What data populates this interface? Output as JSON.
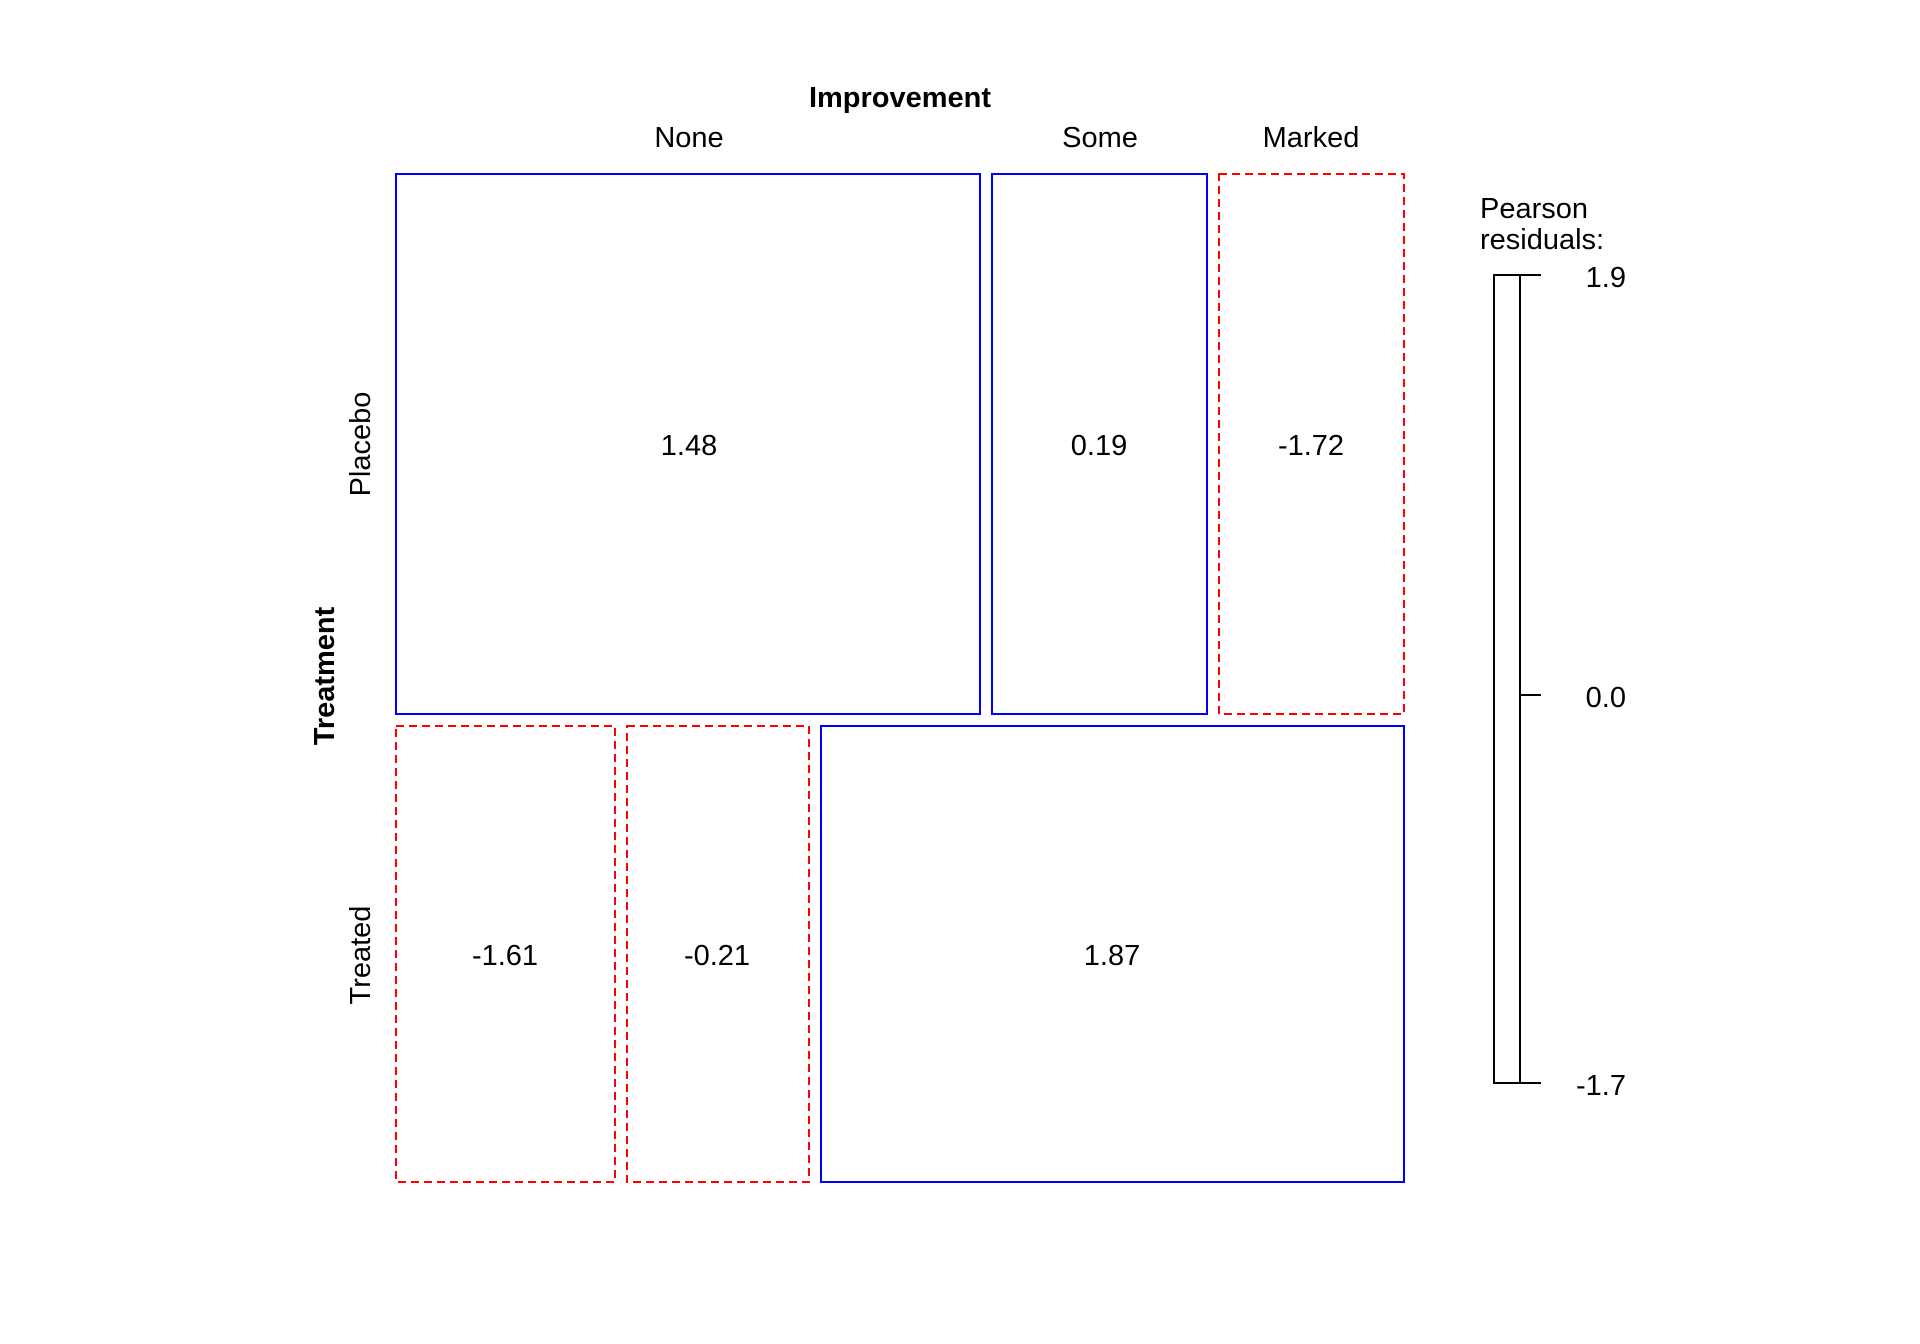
{
  "chart_data": {
    "type": "mosaic",
    "col_variable": "Improvement",
    "row_variable": "Treatment",
    "columns_top": [
      "None",
      "Some",
      "Marked"
    ],
    "rows": [
      "Placebo",
      "Treated"
    ],
    "cells": [
      {
        "row": "Placebo",
        "col": "None",
        "residual": 1.48,
        "label": "1.48"
      },
      {
        "row": "Placebo",
        "col": "Some",
        "residual": 0.19,
        "label": "0.19"
      },
      {
        "row": "Placebo",
        "col": "Marked",
        "residual": -1.72,
        "label": "-1.72"
      },
      {
        "row": "Treated",
        "col": "None",
        "residual": -1.61,
        "label": "-1.61"
      },
      {
        "row": "Treated",
        "col": "Some",
        "residual": -0.21,
        "label": "-0.21"
      },
      {
        "row": "Treated",
        "col": "Marked",
        "residual": 1.87,
        "label": "1.87"
      }
    ],
    "legend": {
      "title_line1": "Pearson",
      "title_line2": "residuals:",
      "ticks": [
        "1.9",
        "0.0",
        "-1.7"
      ],
      "range": [
        -1.7,
        1.9
      ],
      "placement": "right"
    },
    "colors": {
      "positive": "#0000ff",
      "negative": "#ff0000"
    }
  }
}
